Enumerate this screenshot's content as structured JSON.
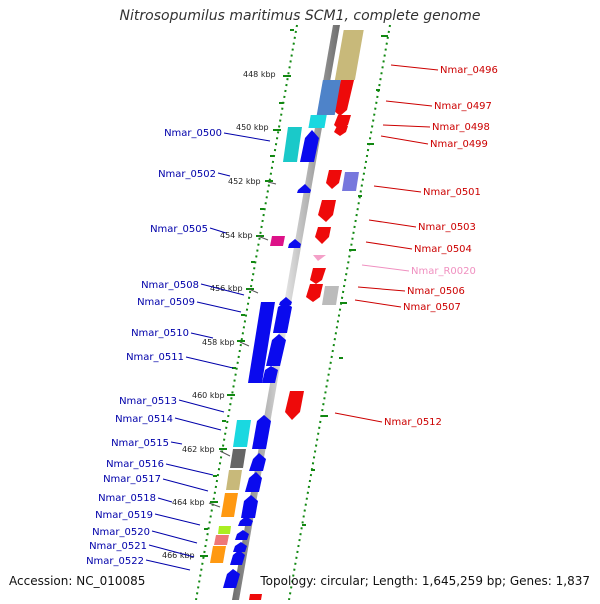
{
  "title": "Nitrosopumilus maritimus SCM1, complete genome",
  "footer": {
    "accession": "Accession: NC_010085",
    "topology": "Topology: circular; Length: 1,645,259 bp; Genes: 1,837"
  },
  "ticks": [
    "448 kbp",
    "450 kbp",
    "452 kbp",
    "454 kbp",
    "456 kbp",
    "458 kbp",
    "460 kbp",
    "462 kbp",
    "464 kbp",
    "466 kbp"
  ],
  "left_labels": [
    "Nmar_0500",
    "Nmar_0502",
    "Nmar_0505",
    "Nmar_0508",
    "Nmar_0509",
    "Nmar_0510",
    "Nmar_0511",
    "Nmar_0513",
    "Nmar_0514",
    "Nmar_0515",
    "Nmar_0516",
    "Nmar_0517",
    "Nmar_0518",
    "Nmar_0519",
    "Nmar_0520",
    "Nmar_0521",
    "Nmar_0522"
  ],
  "right_labels": [
    "Nmar_0496",
    "Nmar_0497",
    "Nmar_0498",
    "Nmar_0499",
    "Nmar_0501",
    "Nmar_0503",
    "Nmar_0504",
    "Nmar_R0020",
    "Nmar_0506",
    "Nmar_0507",
    "Nmar_0512"
  ],
  "colors": {
    "forward_gene": "#0a0aee",
    "reverse_gene": "#ee0a0a",
    "rna_gene": "#f4a0c8",
    "backbone": "#999999",
    "ruler": "#118811",
    "left_label": "#0000aa",
    "right_label": "#cc0000",
    "rna_label": "#f090c0"
  }
}
